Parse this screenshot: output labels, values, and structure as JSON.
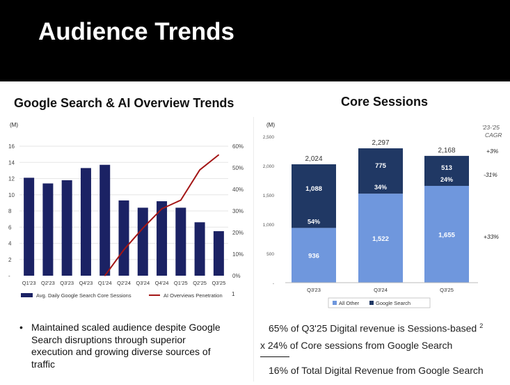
{
  "header": {
    "title": "Audience Trends"
  },
  "left_title": "Google Search & AI Overview Trends",
  "right_title": "Core Sessions",
  "bullet": {
    "marker": "•",
    "text": "Maintained scaled audience despite Google Search disruptions through superior execution and growing diverse sources of traffic"
  },
  "notes": {
    "line1": "65% of Q3'25 Digital revenue is Sessions-based",
    "line1_sup": "2",
    "line2": "x 24% of Core sessions from Google Search",
    "line3": "16% of Total Digital Revenue from Google Search"
  },
  "colors": {
    "navy": "#1b2264",
    "red": "#a31515",
    "dark_blue": "#203864",
    "light_blue": "#6f97dd",
    "grid": "#e6e6e6"
  },
  "chart_data": [
    {
      "type": "bar",
      "unit_label": "(M)",
      "categories": [
        "Q1'23",
        "Q2'23",
        "Q3'23",
        "Q4'23",
        "Q1'24",
        "Q2'24",
        "Q3'24",
        "Q4'24",
        "Q1'25",
        "Q2'25",
        "Q3'25"
      ],
      "series": [
        {
          "name": "Avg. Daily Google Search Core Sessions",
          "axis": "left",
          "kind": "bar",
          "values": [
            12.1,
            11.4,
            11.8,
            13.3,
            13.7,
            9.3,
            8.4,
            9.2,
            8.4,
            6.6,
            5.5
          ]
        },
        {
          "name": "AI Overviews Penetration",
          "axis": "right",
          "kind": "line",
          "values": [
            null,
            null,
            null,
            null,
            0,
            12,
            22,
            31,
            35,
            49,
            56
          ]
        }
      ],
      "left_axis": {
        "ticks": [
          "16",
          "14",
          "12",
          "10",
          "8",
          "6",
          "4",
          "2",
          "-"
        ],
        "range": [
          0,
          16
        ]
      },
      "right_axis": {
        "ticks": [
          "60%",
          "50%",
          "40%",
          "30%",
          "20%",
          "10%",
          "0%"
        ],
        "range": [
          0,
          60
        ]
      },
      "legend_footnote": "1"
    },
    {
      "type": "stacked_bar",
      "unit_label": "(M)",
      "cagr_header": [
        "'23-'25",
        "CAGR"
      ],
      "categories": [
        "Q3'23",
        "Q3'24",
        "Q3'25"
      ],
      "series": [
        {
          "name": "All Other",
          "values": [
            936,
            1522,
            1655
          ]
        },
        {
          "name": "Google Search",
          "values": [
            1088,
            775,
            513
          ]
        }
      ],
      "totals": [
        "2,024",
        "2,297",
        "2,168"
      ],
      "value_labels": {
        "All Other": [
          "936",
          "1,522",
          "1,655"
        ],
        "Google Search": [
          "1,088",
          "775",
          "513"
        ]
      },
      "google_share": [
        "54%",
        "34%",
        "24%"
      ],
      "cagr": {
        "total": "+3%",
        "Google Search": "-31%",
        "All Other": "+33%"
      },
      "y_axis": {
        "ticks": [
          "2,500",
          "2,000",
          "1,500",
          "1,000",
          "500",
          "-"
        ],
        "range": [
          0,
          2500
        ]
      }
    }
  ]
}
